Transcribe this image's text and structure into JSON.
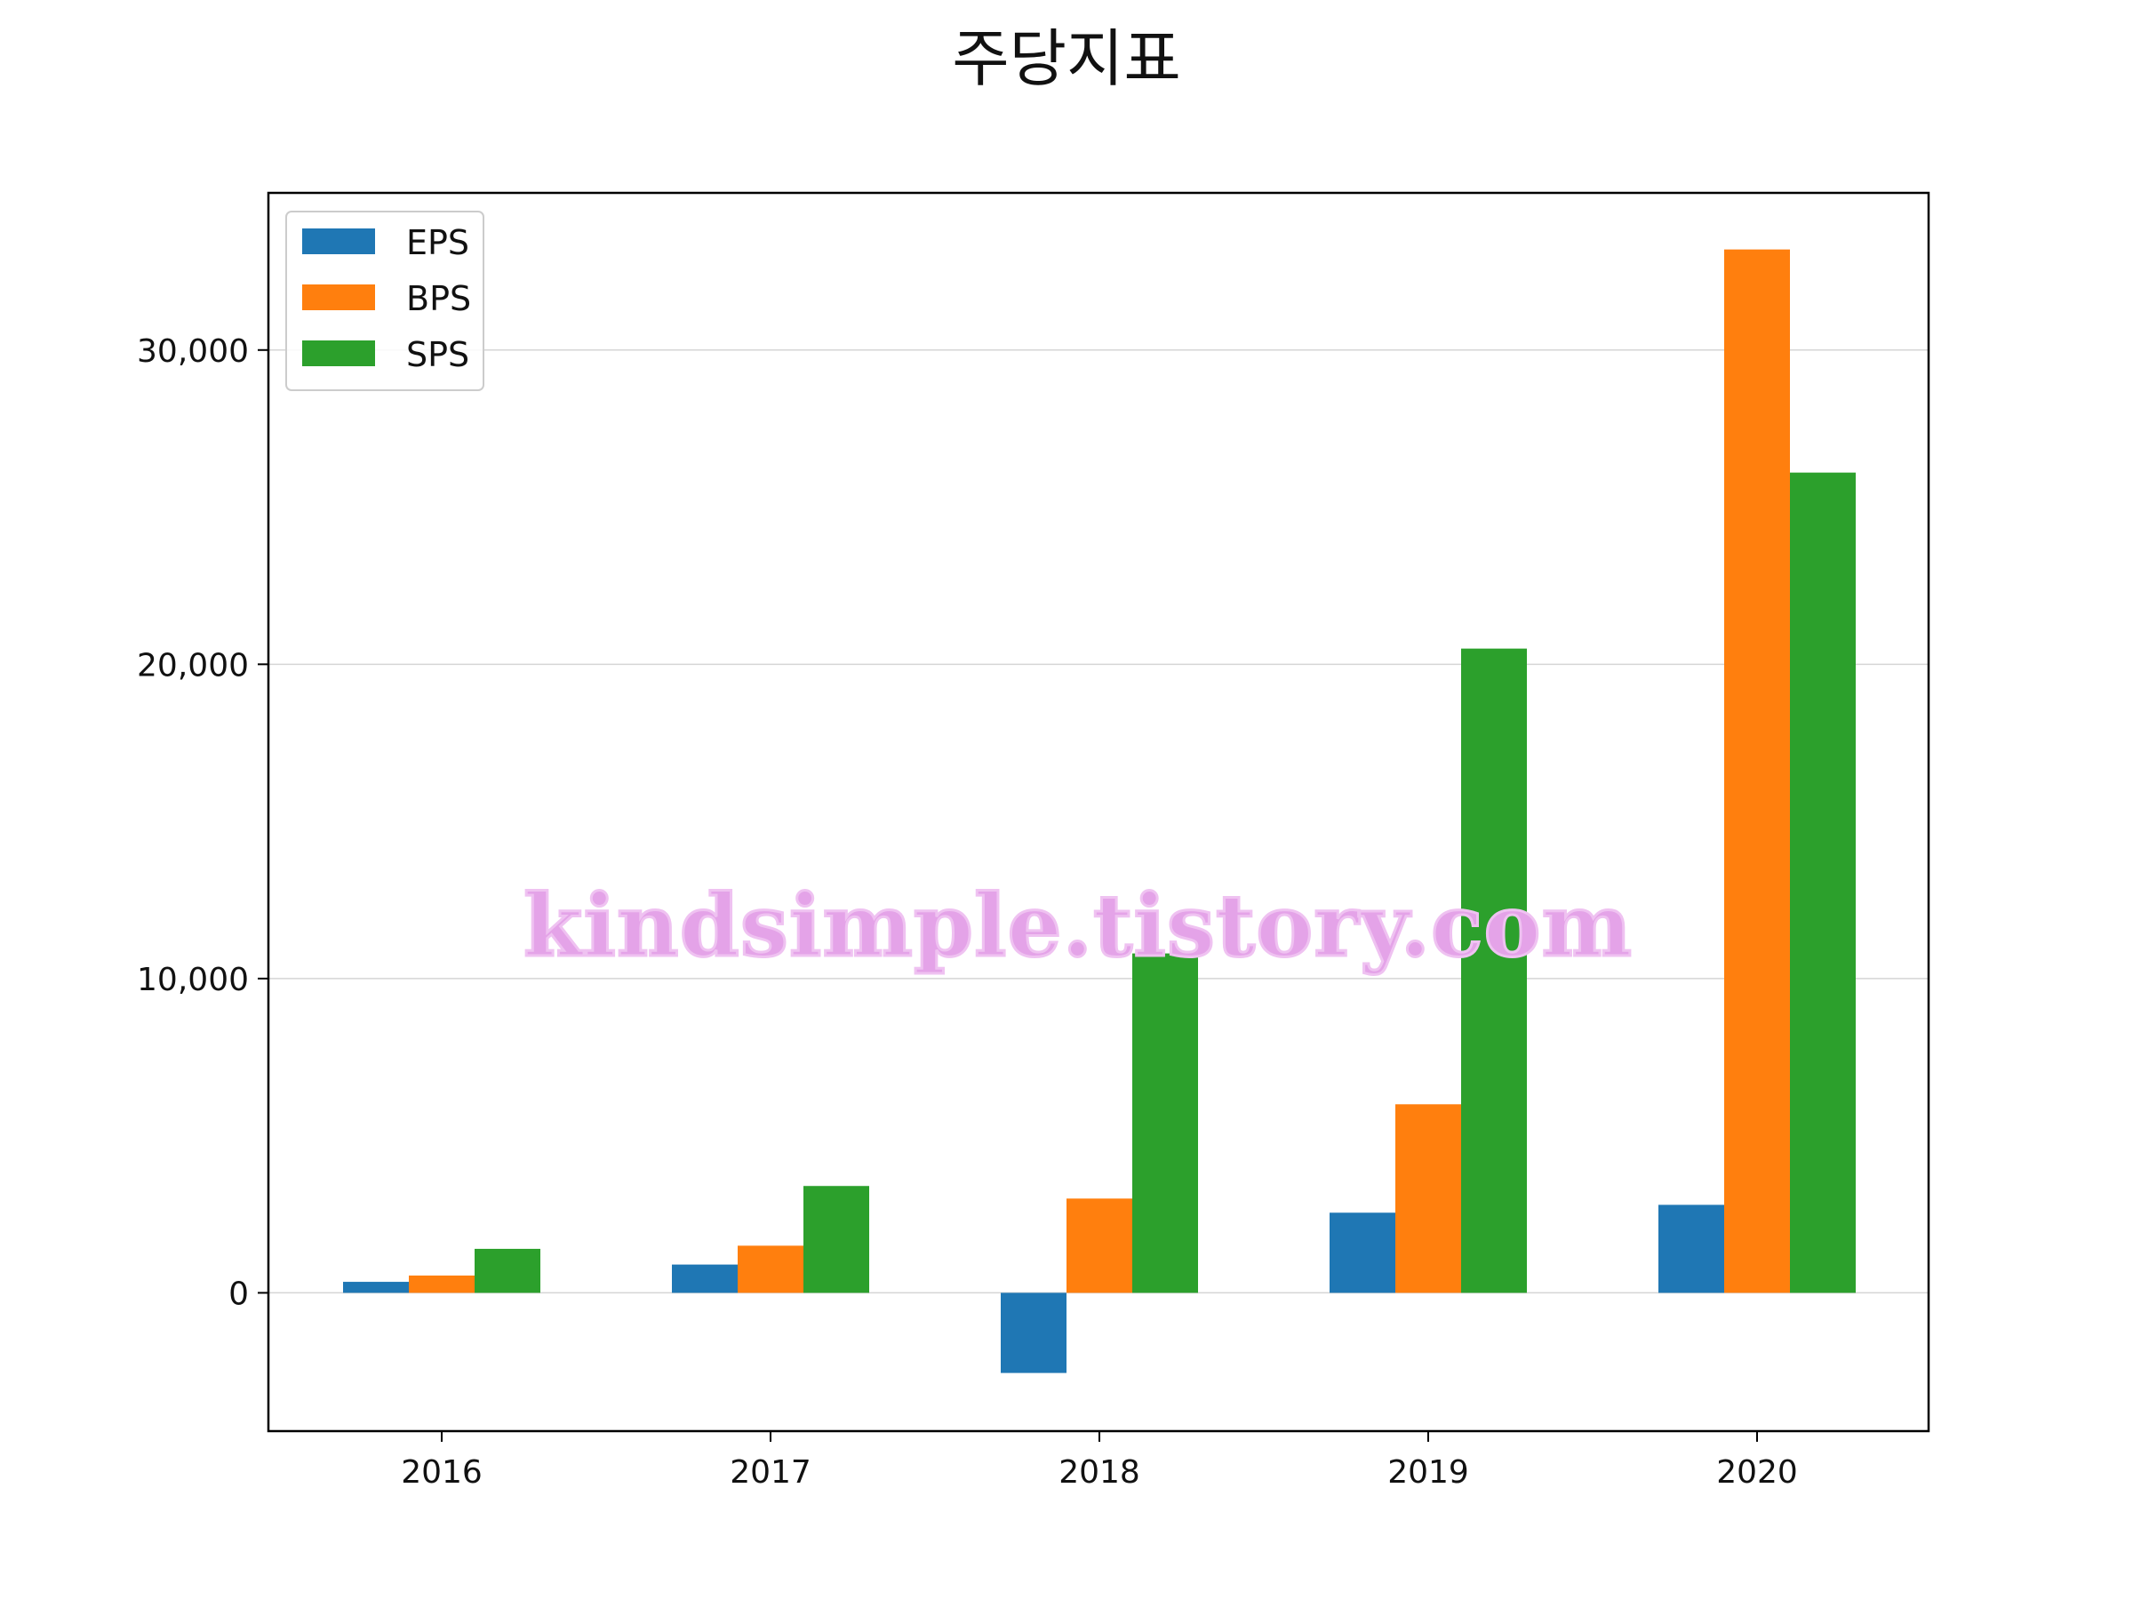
{
  "chart_data": {
    "type": "bar",
    "title": "주당지표",
    "xlabel": "",
    "ylabel": "",
    "categories": [
      "2016",
      "2017",
      "2018",
      "2019",
      "2020"
    ],
    "series": [
      {
        "name": "EPS",
        "color": "#1f77b4",
        "values": [
          350,
          900,
          -2550,
          2550,
          2800
        ]
      },
      {
        "name": "BPS",
        "color": "#ff7f0e",
        "values": [
          550,
          1500,
          3000,
          6000,
          33200
        ]
      },
      {
        "name": "SPS",
        "color": "#2ca02c",
        "values": [
          1400,
          3400,
          10800,
          20500,
          26100
        ]
      }
    ],
    "ylim": [
      -4400,
      35000
    ],
    "yticks": [
      0,
      10000,
      20000,
      30000
    ],
    "ytick_labels": [
      "0",
      "10,000",
      "20,000",
      "30,000"
    ],
    "grid": "horizontal",
    "legend_position": "upper-left",
    "watermark": "kindsimple.tistory.com"
  }
}
